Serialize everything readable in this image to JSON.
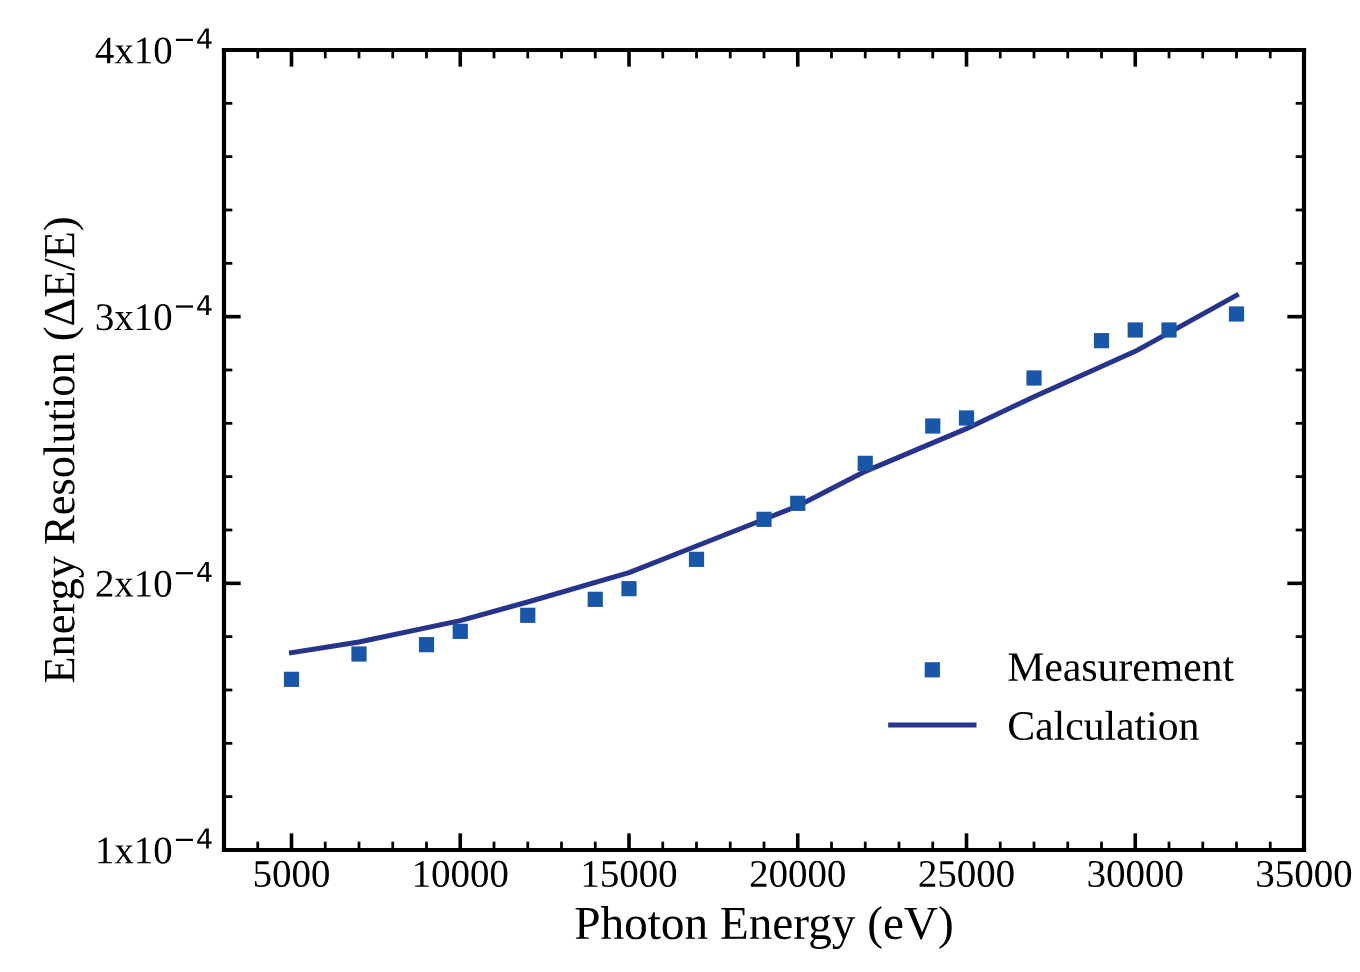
{
  "chart_data": {
    "type": "scatter",
    "xlabel": "Photon Energy (eV)",
    "ylabel": "Energy Resolution (ΔE/E)",
    "xlim": [
      3000,
      35000
    ],
    "xticks": [
      5000,
      10000,
      15000,
      20000,
      25000,
      30000,
      35000
    ],
    "ylim": [
      0.0001,
      0.0004
    ],
    "yticks": [
      {
        "value": 0.0001,
        "label": "1x10$^{−4}$"
      },
      {
        "value": 0.0002,
        "label": "2x10$^{−4}$"
      },
      {
        "value": 0.0003,
        "label": "3x10$^{−4}$"
      },
      {
        "value": 0.0004,
        "label": "4x10$^{−4}$"
      }
    ],
    "grid": false,
    "legend": "bottom right",
    "series": [
      {
        "name": "Measurement",
        "marker": "square",
        "color": "#1a56a8",
        "x": [
          5000,
          7000,
          9000,
          10000,
          12000,
          14000,
          15000,
          17000,
          19000,
          20000,
          22000,
          24000,
          25000,
          27000,
          29000,
          30000,
          31000,
          33000
        ],
        "values": [
          0.000164,
          0.0001735,
          0.000177,
          0.000182,
          0.000188,
          0.000194,
          0.000198,
          0.000209,
          0.000224,
          0.00023,
          0.000245,
          0.000259,
          0.000262,
          0.000277,
          0.000291,
          0.000295,
          0.000295,
          0.000301
        ]
      },
      {
        "name": "Calculation",
        "type": "line",
        "marker": "none",
        "line_style": "solid",
        "color": "#26348c",
        "x": [
          5000,
          7000,
          10000,
          12000,
          15000,
          17000,
          20000,
          22000,
          25000,
          27000,
          30000,
          33000
        ],
        "values": [
          0.000174,
          0.000178,
          0.000186,
          0.000193,
          0.000204,
          0.000214,
          0.000229,
          0.000242,
          0.000258,
          0.00027,
          0.000287,
          0.000308
        ]
      }
    ]
  }
}
